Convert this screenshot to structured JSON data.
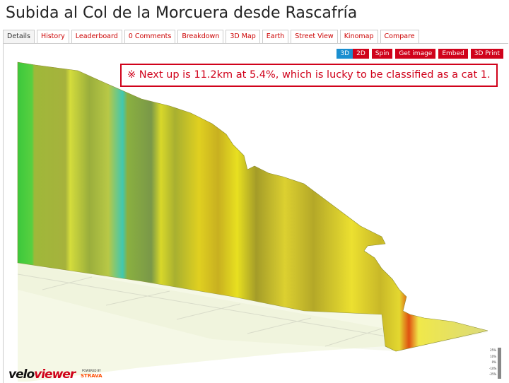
{
  "header": {
    "title": "Subida al Col de la Morcuera desde Rascafría"
  },
  "tabs": [
    "Details",
    "History",
    "Leaderboard",
    "0 Comments",
    "Breakdown",
    "3D Map",
    "Earth",
    "Street View",
    "Kinomap",
    "Compare"
  ],
  "buttons": [
    "3D",
    "2D",
    "Spin",
    "Get image",
    "Embed",
    "3D Print"
  ],
  "annotation": "※ Next up is 11.2km at 5.4%, which is lucky to be classified as a cat 1.",
  "logo": {
    "part1": "velo",
    "part2": "viewer",
    "powered": "POWERED BY",
    "strava": "STRAVA"
  },
  "legend": [
    "25%",
    "10%",
    "0%",
    "-10%",
    "-25%"
  ]
}
